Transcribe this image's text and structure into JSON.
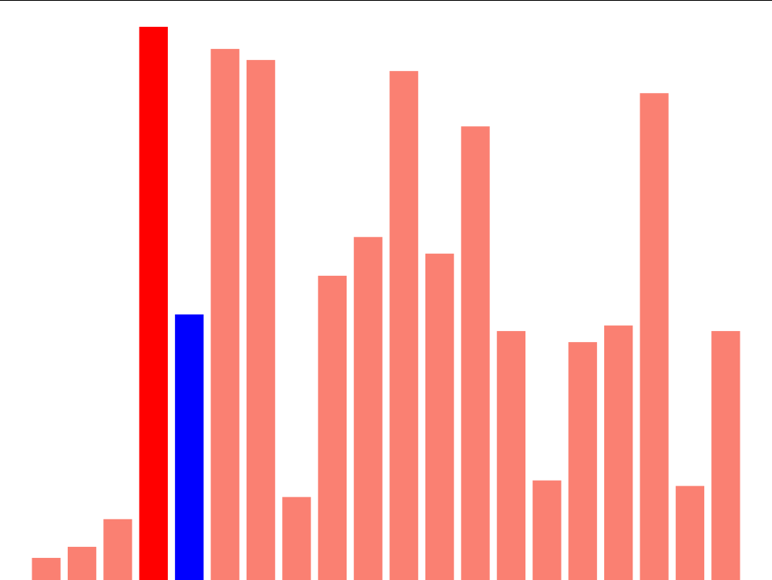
{
  "chart_data": {
    "type": "bar",
    "title": "",
    "xlabel": "",
    "ylabel": "",
    "ylim": [
      0,
      100
    ],
    "grid": false,
    "values": [
      4,
      6,
      11,
      100,
      48,
      96,
      94,
      15,
      55,
      62,
      92,
      59,
      82,
      45,
      18,
      43,
      46,
      88,
      17,
      45
    ],
    "colors": {
      "default": "#fa8072",
      "highlight_max": "#ff0000",
      "highlight_secondary": "#0000ff",
      "frame": "#000000"
    },
    "highlight_max_index": 3,
    "highlight_secondary_index": 4
  }
}
